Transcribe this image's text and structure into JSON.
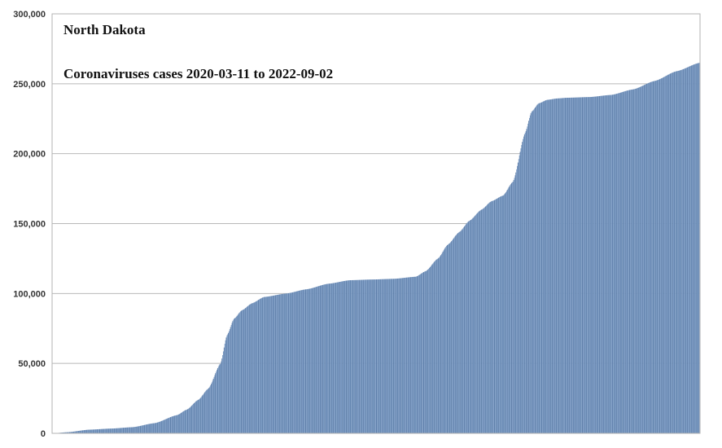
{
  "chart_data": {
    "type": "bar",
    "title": "North Dakota",
    "subtitle": "Coronaviruses cases 2020-03-11 to 2022-09-02",
    "xlabel": "",
    "ylabel": "",
    "x_start": "2020-03-11",
    "x_end": "2022-09-02",
    "ylim": [
      0,
      300000
    ],
    "yticks": [
      0,
      50000,
      100000,
      150000,
      200000,
      250000,
      300000
    ],
    "ytick_labels": [
      "0",
      "50,000",
      "100,000",
      "150,000",
      "200,000",
      "250,000",
      "300,000"
    ],
    "grid": true,
    "legend": "none",
    "bar_color": "#7d9cc4",
    "bar_edge_color": "#5a7ba6",
    "series": [
      {
        "x": [
          "2020-03-11",
          "2020-04-01",
          "2020-05-01",
          "2020-06-01",
          "2020-07-01",
          "2020-08-01",
          "2020-09-01",
          "2020-09-15",
          "2020-10-01",
          "2020-10-15",
          "2020-11-01",
          "2020-11-10",
          "2020-11-20",
          "2020-12-01",
          "2020-12-15",
          "2021-01-01",
          "2021-02-01",
          "2021-03-01",
          "2021-04-01",
          "2021-05-01",
          "2021-06-01",
          "2021-07-01",
          "2021-08-01",
          "2021-08-15",
          "2021-09-01",
          "2021-09-15",
          "2021-10-01",
          "2021-10-15",
          "2021-11-01",
          "2021-11-15",
          "2021-12-01",
          "2021-12-15",
          "2022-01-01",
          "2022-01-10",
          "2022-01-20",
          "2022-02-01",
          "2022-02-15",
          "2022-03-01",
          "2022-04-01",
          "2022-05-01",
          "2022-06-01",
          "2022-07-01",
          "2022-08-01",
          "2022-09-02"
        ],
        "values": [
          0,
          800,
          2600,
          3400,
          4400,
          7300,
          13000,
          17000,
          24000,
          32000,
          50000,
          70000,
          82000,
          88000,
          93000,
          97500,
          100000,
          103000,
          107000,
          109500,
          110000,
          110500,
          112000,
          116000,
          125000,
          135000,
          144000,
          152000,
          160000,
          166000,
          170000,
          180000,
          215000,
          230000,
          236000,
          238500,
          239500,
          240000,
          240500,
          242000,
          246000,
          252000,
          259000,
          265000
        ]
      }
    ]
  }
}
